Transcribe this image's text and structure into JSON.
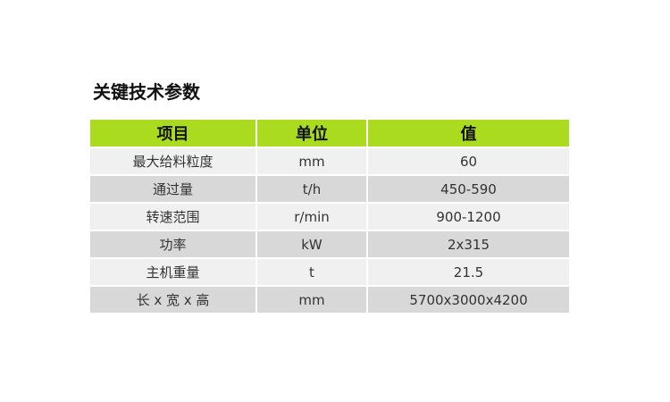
{
  "title": "关键技术参数",
  "colors": {
    "header_bg": "#abdb1e",
    "row_light": "#f0f0f0",
    "row_dark": "#d8d8d8"
  },
  "table": {
    "headers": [
      "项目",
      "单位",
      "值"
    ],
    "rows": [
      [
        "最大给料粒度",
        "mm",
        "60"
      ],
      [
        "通过量",
        "t/h",
        "450-590"
      ],
      [
        "转速范围",
        "r/min",
        "900-1200"
      ],
      [
        "功率",
        "kW",
        "2x315"
      ],
      [
        "主机重量",
        "t",
        "21.5"
      ],
      [
        "长 x 宽 x 高",
        "mm",
        "5700x3000x4200"
      ]
    ]
  }
}
